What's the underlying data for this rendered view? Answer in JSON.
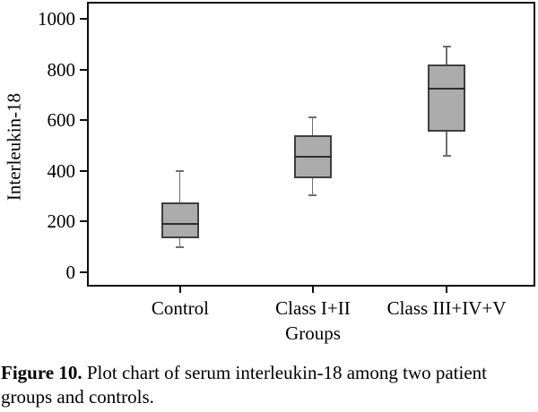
{
  "figure": {
    "caption_label": "Figure 10.",
    "caption_text": " Plot chart of serum interleukin-18 among two patient groups and controls."
  },
  "chart_data": {
    "type": "box",
    "title": "",
    "xlabel": "Groups",
    "ylabel": "Interleukin-18",
    "categories": [
      "Control",
      "Class I+II",
      "Class III+IV+V"
    ],
    "yticks": [
      0,
      200,
      400,
      600,
      800,
      1000
    ],
    "ylim": [
      -50,
      1060
    ],
    "grid": false,
    "boxes": [
      {
        "group": "Control",
        "whisker_low": 100,
        "q1": 135,
        "median": 190,
        "q3": 275,
        "whisker_high": 400
      },
      {
        "group": "Class I+II",
        "whisker_low": 305,
        "q1": 370,
        "median": 455,
        "q3": 540,
        "whisker_high": 610
      },
      {
        "group": "Class III+IV+V",
        "whisker_low": 460,
        "q1": 555,
        "median": 725,
        "q3": 820,
        "whisker_high": 890
      }
    ],
    "colors": {
      "box_fill": "#acacac",
      "box_border": "#3f3f3f",
      "median": "#2e2e2e",
      "whisker": "#6e6e6e",
      "axis": "#0d0d0d",
      "text": "#000000"
    }
  }
}
